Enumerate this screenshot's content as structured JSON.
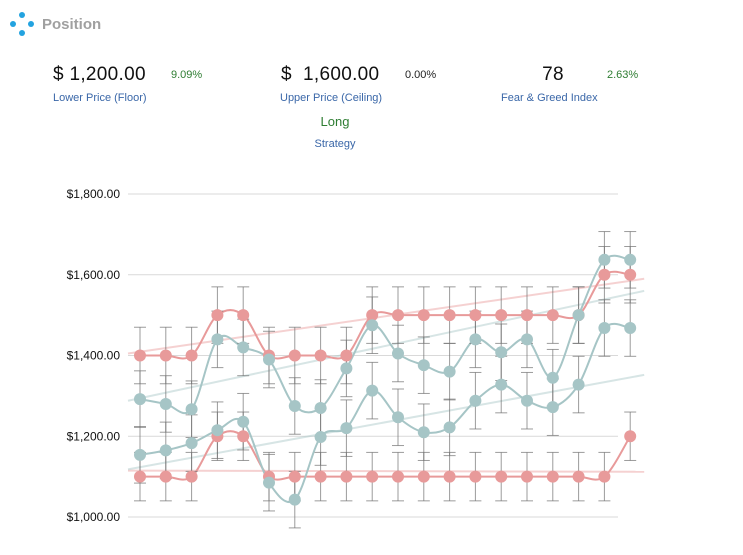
{
  "header": {
    "title": "Position",
    "icon": "position-dots-icon"
  },
  "metrics": {
    "floor": {
      "value": "$ 1,200.00",
      "change": "9.09%",
      "label": "Lower Price (Floor)",
      "change_color": "#2e7d32"
    },
    "ceiling": {
      "value": "$  1,600.00",
      "change": "0.00%",
      "label": "Upper Price (Ceiling)",
      "change_color": "#222222"
    },
    "fear_greed": {
      "value": "78",
      "change": "2.63%",
      "label": "Fear & Greed Index",
      "change_color": "#2e7d32"
    }
  },
  "strategy": {
    "value": "Long",
    "label": "Strategy"
  },
  "colors": {
    "pink": "#e89a9a",
    "teal": "#a6c5c6",
    "grid": "#d9d9d9",
    "error_bar": "#707070",
    "label_blue": "#3a67a8"
  },
  "chart_data": {
    "type": "line",
    "ylim": [
      1000,
      1800
    ],
    "y_tick_labels": [
      "$1,800.00",
      "$1,600.00",
      "$1,400.00",
      "$1,200.00",
      "$1,000.00"
    ],
    "y_tick_values": [
      1800,
      1600,
      1400,
      1200,
      1000
    ],
    "grid": true,
    "points_per_series": 20,
    "series": [
      {
        "color": "#e89a9a",
        "values": [
          1400,
          1400,
          1400,
          1500,
          1500,
          1400,
          1400,
          1400,
          1400,
          1500,
          1500,
          1500,
          1500,
          1500,
          1500,
          1500,
          1500,
          1500,
          1600,
          1600
        ],
        "error": 70
      },
      {
        "color": "#e89a9a",
        "values": [
          1100,
          1100,
          1100,
          1200,
          1200,
          1100,
          1100,
          1100,
          1100,
          1100,
          1100,
          1100,
          1100,
          1100,
          1100,
          1100,
          1100,
          1100,
          1100,
          1200
        ],
        "error": 60
      },
      {
        "color": "#a6c5c6",
        "values": [
          1292,
          1280,
          1267,
          1440,
          1420,
          1390,
          1275,
          1270,
          1368,
          1475,
          1405,
          1376,
          1360,
          1440,
          1408,
          1440,
          1345,
          1500,
          1637,
          1637
        ],
        "error": 70
      },
      {
        "color": "#a6c5c6",
        "values": [
          1154,
          1165,
          1183,
          1215,
          1236,
          1085,
          1043,
          1198,
          1220,
          1313,
          1247,
          1210,
          1222,
          1288,
          1328,
          1288,
          1272,
          1328,
          1468,
          1468
        ],
        "error": 70
      }
    ],
    "trend_lines": [
      {
        "color": "#e89a9a",
        "start": 1405,
        "end": 1590
      },
      {
        "color": "#e89a9a",
        "start": 1115,
        "end": 1112
      },
      {
        "color": "#a6c5c6",
        "start": 1288,
        "end": 1560
      },
      {
        "color": "#a6c5c6",
        "start": 1118,
        "end": 1352
      }
    ]
  }
}
